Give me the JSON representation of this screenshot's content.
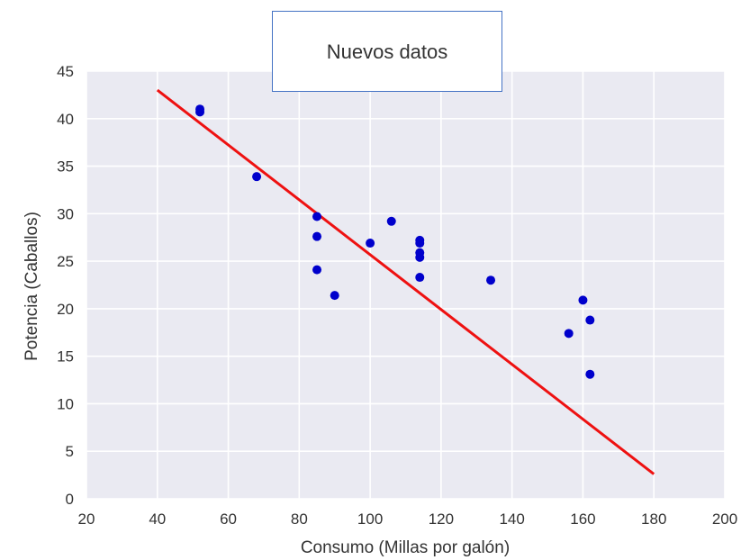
{
  "chart_data": {
    "type": "scatter",
    "title": "",
    "xlabel": "Consumo (Millas por galón)",
    "ylabel": "Potencia (Caballos)",
    "xlim": [
      20,
      200
    ],
    "ylim": [
      0,
      45
    ],
    "xticks": [
      20,
      40,
      60,
      80,
      100,
      120,
      140,
      160,
      180,
      200
    ],
    "yticks": [
      0,
      5,
      10,
      15,
      20,
      25,
      30,
      35,
      40,
      45
    ],
    "grid": true,
    "colors": {
      "background": "#eaeaf2",
      "grid": "#ffffff",
      "points": "#0000cc",
      "line": "#ee1111"
    },
    "points": [
      {
        "x": 52,
        "y": 41.0
      },
      {
        "x": 52,
        "y": 40.7
      },
      {
        "x": 68,
        "y": 33.9
      },
      {
        "x": 85,
        "y": 29.7
      },
      {
        "x": 85,
        "y": 27.6
      },
      {
        "x": 85,
        "y": 24.1
      },
      {
        "x": 90,
        "y": 21.4
      },
      {
        "x": 100,
        "y": 26.9
      },
      {
        "x": 106,
        "y": 29.2
      },
      {
        "x": 114,
        "y": 27.2
      },
      {
        "x": 114,
        "y": 26.9
      },
      {
        "x": 114,
        "y": 25.9
      },
      {
        "x": 114,
        "y": 25.4
      },
      {
        "x": 114,
        "y": 23.3
      },
      {
        "x": 134,
        "y": 23.0
      },
      {
        "x": 156,
        "y": 17.4
      },
      {
        "x": 160,
        "y": 20.9
      },
      {
        "x": 162,
        "y": 18.8
      },
      {
        "x": 162,
        "y": 13.1
      }
    ],
    "fit_line": {
      "x": [
        40,
        180
      ],
      "y": [
        43.0,
        2.6
      ]
    }
  },
  "annotation": {
    "text": "Nuevos datos"
  }
}
